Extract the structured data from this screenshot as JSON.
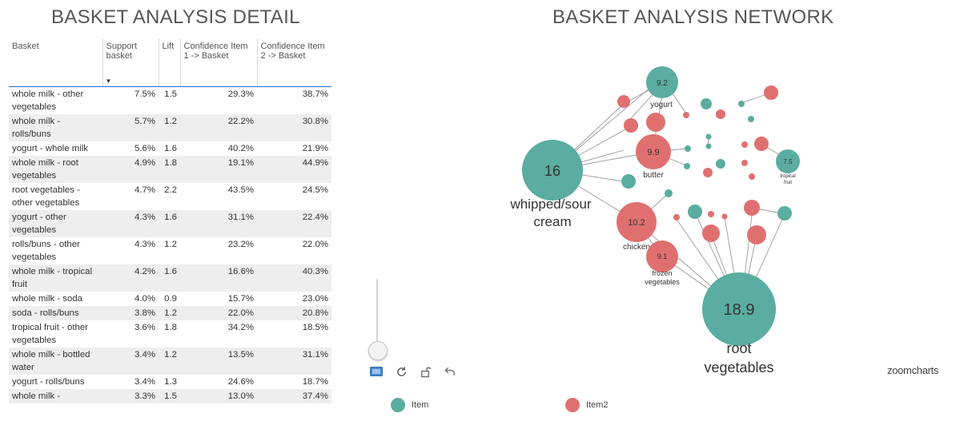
{
  "titles": {
    "detail": "BASKET ANALYSIS DETAIL",
    "network": "BASKET ANALYSIS NETWORK"
  },
  "table": {
    "columns": [
      "Basket",
      "Support basket",
      "Lift",
      "Confidence Item 1 -> Basket",
      "Confidence Item 2 -> Basket"
    ],
    "sorted_column": "Support basket",
    "rows": [
      [
        "whole milk - other vegetables",
        "7.5%",
        "1.5",
        "29.3%",
        "38.7%"
      ],
      [
        "whole milk - rolls/buns",
        "5.7%",
        "1.2",
        "22.2%",
        "30.8%"
      ],
      [
        "yogurt - whole milk",
        "5.6%",
        "1.6",
        "40.2%",
        "21.9%"
      ],
      [
        "whole milk - root vegetables",
        "4.9%",
        "1.8",
        "19.1%",
        "44.9%"
      ],
      [
        "root vegetables - other vegetables",
        "4.7%",
        "2.2",
        "43.5%",
        "24.5%"
      ],
      [
        "yogurt - other vegetables",
        "4.3%",
        "1.6",
        "31.1%",
        "22.4%"
      ],
      [
        "rolls/buns - other vegetables",
        "4.3%",
        "1.2",
        "23.2%",
        "22.0%"
      ],
      [
        "whole milk - tropical fruit",
        "4.2%",
        "1.6",
        "16.6%",
        "40.3%"
      ],
      [
        "whole milk - soda",
        "4.0%",
        "0.9",
        "15.7%",
        "23.0%"
      ],
      [
        "soda - rolls/buns",
        "3.8%",
        "1.2",
        "22.0%",
        "20.8%"
      ],
      [
        "tropical fruit - other vegetables",
        "3.6%",
        "1.8",
        "34.2%",
        "18.5%"
      ],
      [
        "whole milk - bottled water",
        "3.4%",
        "1.2",
        "13.5%",
        "31.1%"
      ],
      [
        "yogurt - rolls/buns",
        "3.4%",
        "1.3",
        "24.6%",
        "18.7%"
      ],
      [
        "whole milk -",
        "3.3%",
        "1.5",
        "13.0%",
        "37.4%"
      ]
    ]
  },
  "network": {
    "colors": {
      "item": "#5aada0",
      "item2": "#e07070",
      "link": "#9a9a9a"
    },
    "nodes": [
      {
        "id": "whipped",
        "value": "16",
        "label": [
          "whipped/sour",
          "cream"
        ],
        "group": "item"
      },
      {
        "id": "root",
        "value": "18.9",
        "label": [
          "root",
          "vegetables"
        ],
        "group": "item"
      },
      {
        "id": "yogurt",
        "value": "9.2",
        "label": [
          "yogurt"
        ],
        "group": "item"
      },
      {
        "id": "tropical",
        "value": "7.5",
        "label": [
          "tropical",
          "fruit"
        ],
        "group": "item"
      },
      {
        "id": "butter",
        "value": "9.9",
        "label": [
          "butter"
        ],
        "group": "item2"
      },
      {
        "id": "chicken",
        "value": "10.2",
        "label": [
          "chicken"
        ],
        "group": "item2"
      },
      {
        "id": "frozen",
        "value": "9.1",
        "label": [
          "frozen",
          "vegetables"
        ],
        "group": "item2"
      }
    ],
    "legend": [
      {
        "label": "Item",
        "color": "#5aada0"
      },
      {
        "label": "Item2",
        "color": "#e07070"
      }
    ]
  },
  "brand": "zoomcharts",
  "icons": [
    "image-mode-icon",
    "refresh-icon",
    "unlock-icon",
    "back-icon"
  ]
}
